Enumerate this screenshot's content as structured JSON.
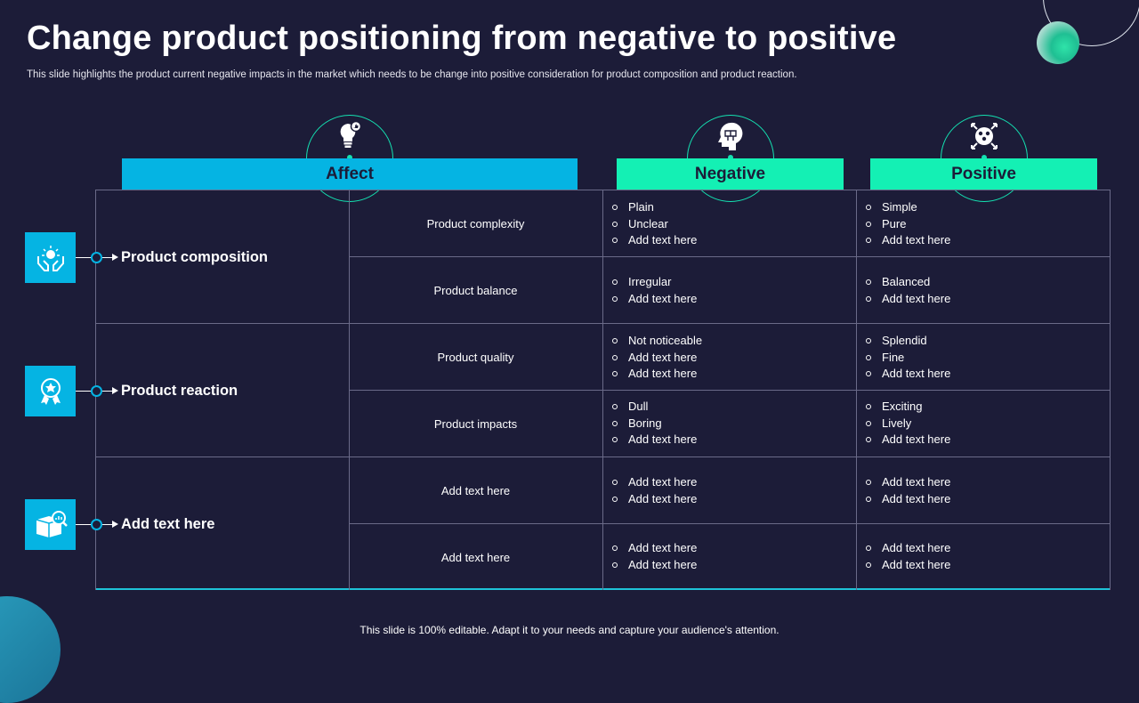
{
  "header": {
    "title": "Change product positioning from negative to positive",
    "subtitle": "This slide highlights the product current negative impacts in the market which needs to be change into positive consideration for product composition and product reaction."
  },
  "columns": {
    "affect": "Affect",
    "negative": "Negative",
    "positive": "Positive"
  },
  "colors": {
    "background": "#1c1c38",
    "blue": "#05b4e3",
    "green": "#14f0b4",
    "grid": "#6a6a88"
  },
  "categories": [
    {
      "label": "Product composition",
      "icon": "hands-brain-icon"
    },
    {
      "label": "Product reaction",
      "icon": "award-badge-icon"
    },
    {
      "label": "Add text  here",
      "icon": "box-analytics-icon"
    }
  ],
  "rows": [
    {
      "affect": "Product complexity",
      "negative": [
        "Plain",
        "Unclear",
        "Add text here"
      ],
      "positive": [
        "Simple",
        "Pure",
        "Add text here"
      ]
    },
    {
      "affect": "Product balance",
      "negative": [
        "Irregular",
        "Add text here"
      ],
      "positive": [
        "Balanced",
        "Add text here"
      ]
    },
    {
      "affect": "Product quality",
      "negative": [
        "Not noticeable",
        "Add text here",
        "Add text here"
      ],
      "positive": [
        "Splendid",
        "Fine",
        "Add text here"
      ]
    },
    {
      "affect": "Product impacts",
      "negative": [
        "Dull",
        "Boring",
        "Add text here"
      ],
      "positive": [
        "Exciting",
        "Lively",
        "Add text here"
      ]
    },
    {
      "affect": "Add text here",
      "negative": [
        "Add text here",
        "Add text here"
      ],
      "positive": [
        "Add text here",
        "Add text here"
      ]
    },
    {
      "affect": "Add text here",
      "negative": [
        "Add text here",
        "Add text here"
      ],
      "positive": [
        "Add text here",
        "Add text here"
      ]
    }
  ],
  "footer": "This slide is 100% editable. Adapt it to your needs and capture your audience's attention."
}
